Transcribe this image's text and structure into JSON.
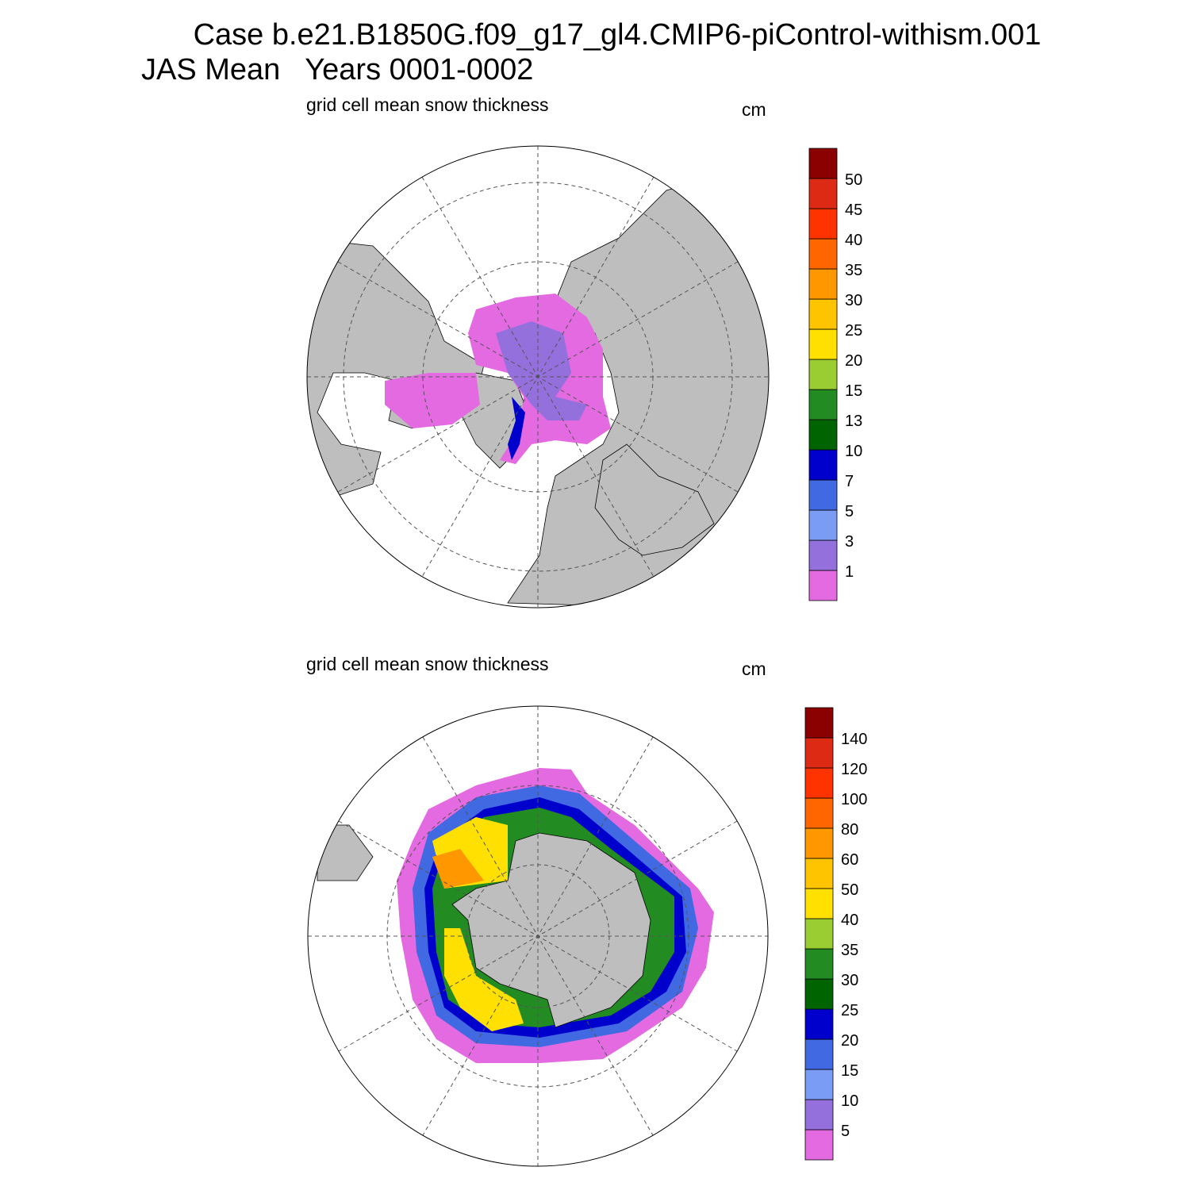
{
  "header": {
    "line1": "Case b.e21.B1850G.f09_g17_gl4.CMIP6-piControl-withism.001",
    "line2": "JAS Mean   Years 0001-0002"
  },
  "panels": [
    {
      "title": "grid cell mean snow thickness",
      "units": "cm",
      "colorbar": {
        "levels": [
          1,
          3,
          5,
          7,
          10,
          13,
          15,
          20,
          25,
          30,
          35,
          40,
          45,
          50
        ],
        "colors": [
          "#e36ae0",
          "#9370db",
          "#7b9cf5",
          "#4169e1",
          "#0000cd",
          "#006400",
          "#228b22",
          "#9acd32",
          "#ffe000",
          "#ffc400",
          "#ff9800",
          "#ff6600",
          "#ff3300",
          "#dc2a14",
          "#8b0000"
        ]
      }
    },
    {
      "title": "grid cell mean snow thickness",
      "units": "cm",
      "colorbar": {
        "levels": [
          5,
          10,
          15,
          20,
          25,
          30,
          35,
          40,
          50,
          60,
          80,
          100,
          120,
          140
        ],
        "colors": [
          "#e36ae0",
          "#9370db",
          "#7b9cf5",
          "#4169e1",
          "#0000cd",
          "#006400",
          "#228b22",
          "#9acd32",
          "#ffe000",
          "#ffc400",
          "#ff9800",
          "#ff6600",
          "#ff3300",
          "#dc2a14",
          "#8b0000"
        ]
      }
    }
  ]
}
